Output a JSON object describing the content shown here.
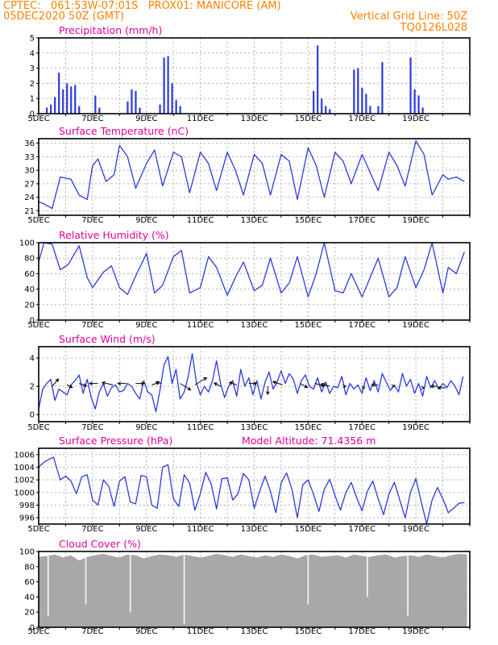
{
  "header": {
    "line1_left": "CPTEC:   061:53W-07:01S   PROX01: MANICORE (AM)",
    "line2_left": "05DEC2020 50Z (GMT)",
    "line2_right": "Vertical Grid Line: 50Z",
    "line3_right": "TQ0126L028"
  },
  "model_altitude": "Model Altitude: 71.4356 m",
  "colors": {
    "header": "#ff8000",
    "title": "#e0009a",
    "series": "#2b3bdc",
    "cloud": "#a8a8a8",
    "grid": "#b0b0b0"
  },
  "chart_data": [
    {
      "type": "bar",
      "title": "Precipitation (mm/h)",
      "x_labels": [
        "5DEC",
        "7DEC",
        "9DEC",
        "11DEC",
        "13DEC",
        "15DEC",
        "17DEC",
        "19DEC"
      ],
      "ylim": [
        0,
        5
      ],
      "yticks": [
        "0",
        "1",
        "2",
        "3",
        "4",
        "5"
      ],
      "x": [
        0.3,
        0.45,
        0.6,
        0.75,
        0.9,
        1.05,
        1.2,
        1.35,
        1.5,
        2.1,
        2.25,
        3.3,
        3.45,
        3.6,
        3.75,
        4.5,
        4.65,
        4.8,
        4.95,
        5.1,
        5.25,
        10.2,
        10.35,
        10.5,
        10.65,
        10.8,
        11.7,
        11.85,
        12.0,
        12.15,
        12.3,
        12.6,
        12.75,
        13.8,
        13.95,
        14.1,
        14.25
      ],
      "values": [
        0.4,
        0.6,
        1.1,
        2.7,
        1.6,
        2.0,
        1.8,
        1.9,
        0.5,
        1.2,
        0.4,
        0.8,
        1.6,
        1.5,
        0.4,
        0.6,
        3.7,
        3.8,
        2.0,
        0.9,
        0.5,
        1.5,
        4.5,
        1.0,
        0.5,
        0.3,
        2.9,
        3.0,
        1.7,
        1.3,
        0.5,
        0.5,
        3.4,
        3.7,
        1.6,
        1.2,
        0.4
      ],
      "grid": true
    },
    {
      "type": "line",
      "title": "Surface Temperature (nC)",
      "x_labels": [
        "5DEC",
        "7DEC",
        "9DEC",
        "11DEC",
        "13DEC",
        "15DEC",
        "17DEC",
        "19DEC"
      ],
      "ylim": [
        20,
        37
      ],
      "yticks": [
        "21",
        "24",
        "27",
        "30",
        "33",
        "36"
      ],
      "x": [
        0.0,
        0.2,
        0.5,
        0.8,
        1.2,
        1.5,
        1.8,
        2.0,
        2.2,
        2.5,
        2.8,
        3.0,
        3.3,
        3.6,
        4.0,
        4.3,
        4.6,
        5.0,
        5.3,
        5.6,
        6.0,
        6.3,
        6.6,
        7.0,
        7.3,
        7.6,
        8.0,
        8.3,
        8.6,
        9.0,
        9.3,
        9.6,
        10.0,
        10.3,
        10.6,
        11.0,
        11.3,
        11.6,
        12.0,
        12.3,
        12.6,
        13.0,
        13.3,
        13.6,
        14.0,
        14.3,
        14.6,
        15.0,
        15.2,
        15.5,
        15.8
      ],
      "values": [
        23.0,
        22.5,
        21.5,
        28.5,
        28.0,
        24.5,
        23.5,
        31.0,
        32.5,
        27.5,
        29.0,
        35.5,
        33.0,
        26.0,
        31.5,
        34.5,
        26.5,
        34.0,
        33.0,
        25.0,
        34.0,
        31.5,
        25.5,
        34.0,
        30.0,
        24.5,
        33.5,
        31.5,
        24.5,
        33.5,
        32.0,
        23.5,
        35.0,
        31.0,
        24.0,
        34.0,
        32.0,
        27.0,
        33.5,
        29.5,
        25.5,
        34.0,
        31.0,
        26.5,
        36.5,
        33.5,
        24.5,
        29.0,
        28.0,
        28.5,
        27.5
      ],
      "grid": true
    },
    {
      "type": "line",
      "title": "Relative Humidity (%)",
      "x_labels": [
        "5DEC",
        "7DEC",
        "9DEC",
        "11DEC",
        "13DEC",
        "15DEC",
        "17DEC",
        "19DEC"
      ],
      "ylim": [
        0,
        100
      ],
      "yticks": [
        "0",
        "20",
        "40",
        "60",
        "80",
        "100"
      ],
      "x": [
        0.0,
        0.2,
        0.5,
        0.8,
        1.1,
        1.5,
        1.8,
        2.0,
        2.4,
        2.7,
        3.0,
        3.3,
        3.6,
        4.0,
        4.3,
        4.6,
        5.0,
        5.3,
        5.6,
        6.0,
        6.3,
        6.6,
        7.0,
        7.3,
        7.6,
        8.0,
        8.3,
        8.6,
        9.0,
        9.3,
        9.6,
        10.0,
        10.3,
        10.6,
        11.0,
        11.3,
        11.6,
        12.0,
        12.3,
        12.6,
        13.0,
        13.3,
        13.6,
        14.0,
        14.3,
        14.6,
        15.0,
        15.2,
        15.5,
        15.8
      ],
      "values": [
        75,
        100,
        98,
        65,
        72,
        96,
        55,
        42,
        62,
        70,
        42,
        33,
        57,
        86,
        35,
        45,
        82,
        90,
        35,
        42,
        82,
        68,
        32,
        55,
        75,
        38,
        45,
        80,
        35,
        48,
        82,
        30,
        60,
        100,
        38,
        35,
        60,
        30,
        55,
        80,
        30,
        42,
        82,
        42,
        65,
        100,
        35,
        68,
        60,
        88
      ],
      "grid": true
    },
    {
      "type": "line",
      "title": "Surface Wind (m/s)",
      "x_labels": [
        "5DEC",
        "7DEC",
        "9DEC",
        "11DEC",
        "13DEC",
        "15DEC",
        "17DEC",
        "19DEC"
      ],
      "ylim": [
        -0.5,
        4.8
      ],
      "yticks": [
        "0",
        "2",
        "4"
      ],
      "x": [
        0.0,
        0.15,
        0.3,
        0.45,
        0.6,
        0.75,
        0.9,
        1.05,
        1.2,
        1.35,
        1.5,
        1.65,
        1.8,
        1.95,
        2.1,
        2.25,
        2.4,
        2.55,
        2.7,
        2.85,
        3.0,
        3.15,
        3.3,
        3.45,
        3.6,
        3.75,
        3.9,
        4.05,
        4.2,
        4.35,
        4.5,
        4.65,
        4.8,
        4.95,
        5.1,
        5.25,
        5.4,
        5.55,
        5.7,
        5.85,
        6.0,
        6.15,
        6.3,
        6.45,
        6.6,
        6.75,
        6.9,
        7.05,
        7.2,
        7.35,
        7.5,
        7.65,
        7.8,
        7.95,
        8.1,
        8.25,
        8.4,
        8.55,
        8.7,
        8.85,
        9.0,
        9.15,
        9.3,
        9.45,
        9.6,
        9.75,
        9.9,
        10.05,
        10.2,
        10.35,
        10.5,
        10.65,
        10.8,
        10.95,
        11.1,
        11.25,
        11.4,
        11.55,
        11.7,
        11.85,
        12.0,
        12.15,
        12.3,
        12.45,
        12.6,
        12.75,
        12.9,
        13.05,
        13.2,
        13.35,
        13.5,
        13.65,
        13.8,
        13.95,
        14.1,
        14.25,
        14.4,
        14.55,
        14.7,
        14.85,
        15.0,
        15.15,
        15.3,
        15.45,
        15.6,
        15.75
      ],
      "values": [
        0.4,
        1.8,
        2.2,
        2.5,
        1.0,
        1.8,
        1.6,
        1.4,
        2.1,
        2.4,
        2.8,
        1.5,
        2.5,
        1.2,
        0.4,
        1.6,
        2.2,
        1.3,
        1.9,
        2.1,
        1.6,
        1.7,
        2.2,
        2.0,
        1.5,
        1.1,
        2.4,
        1.6,
        1.4,
        0.2,
        1.7,
        3.5,
        4.1,
        2.2,
        3.2,
        1.1,
        1.6,
        2.7,
        4.3,
        2.3,
        1.4,
        2.0,
        1.6,
        2.4,
        3.8,
        2.2,
        1.2,
        2.0,
        2.4,
        1.3,
        3.2,
        2.0,
        2.6,
        1.4,
        2.4,
        1.1,
        2.3,
        3.0,
        1.8,
        2.3,
        3.1,
        2.2,
        2.9,
        2.5,
        1.5,
        2.4,
        2.8,
        2.0,
        1.8,
        2.6,
        1.6,
        2.3,
        1.5,
        2.0,
        1.9,
        2.7,
        1.4,
        2.2,
        1.8,
        2.1,
        1.5,
        2.6,
        1.7,
        2.4,
        1.6,
        2.9,
        2.3,
        1.7,
        2.1,
        1.6,
        2.9,
        2.0,
        2.5,
        1.5,
        2.2,
        1.3,
        2.7,
        1.9,
        2.4,
        1.8,
        2.2,
        1.9,
        2.4,
        2.0,
        1.4,
        2.7
      ],
      "arrows_x": [
        0.5,
        1.05,
        1.5,
        2.2,
        2.75,
        3.25,
        3.6,
        4.2,
        4.55,
        5.25,
        5.8,
        6.75,
        7.35,
        7.8,
        8.5,
        9.05,
        9.7,
        10.25,
        10.8,
        11.4,
        12.1,
        12.6,
        13.2,
        14.3,
        14.8,
        15.1
      ],
      "arrows_y": [
        2.0,
        2.1,
        2.2,
        2.2,
        2.1,
        2.2,
        2.2,
        2.1,
        2.2,
        2.2,
        2.1,
        2.0,
        2.1,
        2.2,
        2.0,
        2.1,
        2.2,
        2.2,
        2.0,
        2.0,
        1.9,
        2.1,
        2.0,
        1.9,
        2.0,
        1.9
      ],
      "arrows_dx": [
        0.6,
        0.5,
        0.7,
        -0.8,
        -1.0,
        -0.8,
        0.8,
        0.7,
        -0.5,
        1.0,
        1.1,
        -0.6,
        -0.7,
        0.7,
        0.0,
        -0.9,
        0.7,
        0.9,
        -0.8,
        0.0,
        0.0,
        -0.6,
        0.0,
        0.0,
        -0.6,
        -0.7
      ],
      "arrows_dy": [
        0.9,
        -0.3,
        -0.3,
        0.0,
        0.3,
        0.0,
        0.0,
        0.3,
        0.2,
        -0.8,
        0.9,
        0.4,
        0.3,
        0.0,
        -1.0,
        0.4,
        -0.5,
        -0.3,
        0.3,
        0.0,
        0.0,
        0.0,
        0.0,
        0.0,
        0.0,
        0.0
      ],
      "grid": true
    },
    {
      "type": "line",
      "title": "Surface Pressure (hPa)",
      "x_labels": [
        "5DEC",
        "7DEC",
        "9DEC",
        "11DEC",
        "13DEC",
        "15DEC",
        "17DEC",
        "19DEC"
      ],
      "ylim": [
        995,
        1007
      ],
      "yticks": [
        "996",
        "998",
        "1000",
        "1002",
        "1004",
        "1006"
      ],
      "x": [
        0.0,
        0.2,
        0.4,
        0.55,
        0.8,
        1.0,
        1.2,
        1.4,
        1.6,
        1.8,
        2.0,
        2.2,
        2.4,
        2.6,
        2.8,
        3.0,
        3.2,
        3.4,
        3.6,
        3.8,
        4.0,
        4.2,
        4.4,
        4.6,
        4.8,
        5.0,
        5.2,
        5.4,
        5.6,
        5.8,
        6.0,
        6.2,
        6.4,
        6.6,
        6.8,
        7.0,
        7.2,
        7.4,
        7.6,
        7.8,
        8.0,
        8.2,
        8.4,
        8.6,
        8.8,
        9.0,
        9.2,
        9.4,
        9.6,
        9.8,
        10.0,
        10.2,
        10.4,
        10.6,
        10.8,
        11.0,
        11.2,
        11.4,
        11.6,
        11.8,
        12.0,
        12.2,
        12.4,
        12.6,
        12.8,
        13.0,
        13.2,
        13.4,
        13.6,
        13.8,
        14.0,
        14.2,
        14.4,
        14.6,
        14.8,
        15.0,
        15.2,
        15.4,
        15.6,
        15.8
      ],
      "values": [
        1004.0,
        1004.8,
        1005.3,
        1005.6,
        1002.0,
        1002.6,
        1001.8,
        999.8,
        1002.5,
        1002.8,
        998.8,
        998.0,
        1002.0,
        1001.0,
        997.8,
        1001.8,
        1002.5,
        998.5,
        998.2,
        1002.7,
        1002.5,
        998.0,
        997.5,
        1004.0,
        1004.4,
        999.0,
        997.8,
        1002.8,
        1001.5,
        997.2,
        999.8,
        1003.2,
        1001.4,
        997.4,
        1002.2,
        1002.3,
        998.8,
        999.8,
        1003.0,
        1002.0,
        997.5,
        1000.2,
        1002.6,
        1000.2,
        996.8,
        1001.5,
        1003.1,
        1000.5,
        996.0,
        1001.2,
        1002.0,
        999.7,
        997.0,
        1000.5,
        1002.1,
        999.5,
        997.2,
        1000.0,
        1001.6,
        999.2,
        997.1,
        1000.2,
        1001.8,
        999.0,
        996.5,
        999.8,
        1001.6,
        998.8,
        996.0,
        1000.0,
        1002.2,
        998.5,
        995.0,
        998.8,
        1000.8,
        999.0,
        996.8,
        997.5,
        998.3,
        998.4
      ],
      "grid": true
    },
    {
      "type": "area",
      "title": "Cloud Cover (%)",
      "x_labels": [
        "5DEC",
        "7DEC",
        "9DEC",
        "11DEC",
        "13DEC",
        "15DEC",
        "17DEC",
        "19DEC"
      ],
      "ylim": [
        0,
        100
      ],
      "yticks": [
        "0",
        "20",
        "40",
        "60",
        "80",
        "100"
      ],
      "x": [
        0.0,
        0.3,
        0.6,
        0.9,
        1.2,
        1.5,
        1.8,
        2.1,
        2.4,
        2.7,
        3.0,
        3.3,
        3.6,
        3.9,
        4.2,
        4.5,
        4.8,
        5.1,
        5.4,
        5.7,
        6.0,
        6.3,
        6.6,
        6.9,
        7.2,
        7.5,
        7.8,
        8.1,
        8.4,
        8.7,
        9.0,
        9.3,
        9.6,
        9.9,
        10.2,
        10.5,
        10.8,
        11.1,
        11.4,
        11.7,
        12.0,
        12.3,
        12.6,
        12.9,
        13.2,
        13.5,
        13.8,
        14.1,
        14.4,
        14.7,
        15.0,
        15.3,
        15.6,
        15.9
      ],
      "values": [
        93,
        94,
        96,
        92,
        95,
        88,
        93,
        95,
        97,
        94,
        92,
        96,
        95,
        91,
        94,
        96,
        95,
        93,
        96,
        94,
        92,
        94,
        97,
        95,
        93,
        96,
        94,
        92,
        95,
        93,
        96,
        94,
        91,
        95,
        96,
        93,
        94,
        95,
        92,
        96,
        94,
        93,
        95,
        96,
        92,
        94,
        95,
        93,
        96,
        94,
        92,
        95,
        97,
        96
      ],
      "dips_x": [
        0.35,
        1.75,
        3.4,
        5.4,
        10.0,
        12.2,
        13.7
      ],
      "dips_v": [
        15,
        30,
        20,
        4,
        30,
        40,
        15
      ],
      "grid": true
    }
  ]
}
